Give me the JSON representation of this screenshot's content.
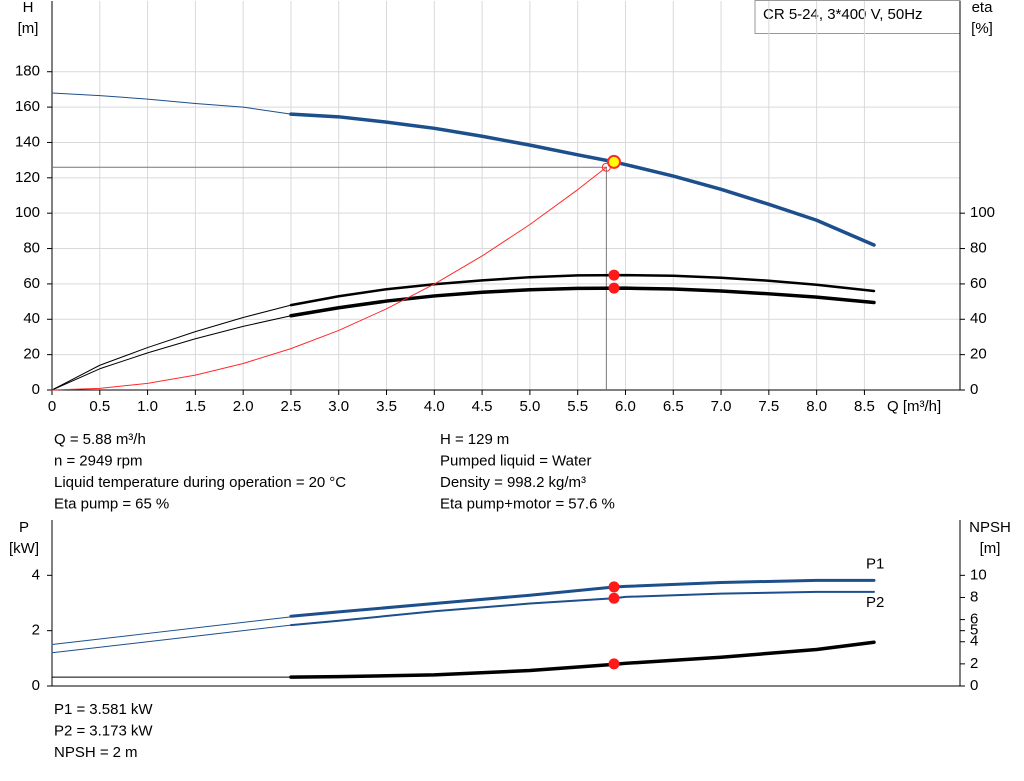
{
  "chart_data": [
    {
      "type": "line",
      "title": "CR 5-24, 3*400 V, 50Hz",
      "x_label": "Q [m³/h]",
      "y_label": "H",
      "y_unit": "[m]",
      "y2_label": "eta",
      "y2_unit": "[%]",
      "xlim": [
        0,
        9.5
      ],
      "xticks": [
        0,
        0.5,
        {
          "value": 1,
          "label": "1.0"
        },
        1.5,
        {
          "value": 2,
          "label": "2.0"
        },
        2.5,
        {
          "value": 3,
          "label": "3.0"
        },
        3.5,
        {
          "value": 4,
          "label": "4.0"
        },
        4.5,
        {
          "value": 5,
          "label": "5.0"
        },
        5.5,
        {
          "value": 6,
          "label": "6.0"
        },
        6.5,
        {
          "value": 7,
          "label": "7.0"
        },
        7.5,
        {
          "value": 8,
          "label": "8.0"
        },
        8.5
      ],
      "ylim": [
        0,
        220
      ],
      "yticks": [
        0,
        20,
        40,
        60,
        80,
        100,
        120,
        140,
        160,
        180
      ],
      "y2lim": [
        0,
        220
      ],
      "y2ticks": [
        0,
        20,
        40,
        60,
        80,
        100
      ],
      "grid": true,
      "duty_point": {
        "x": 5.8,
        "y": 126
      },
      "series": [
        {
          "color": "#1c4f8c",
          "width": 1,
          "x": [
            0,
            0.5,
            1,
            1.5,
            2,
            2.5
          ],
          "values": [
            168,
            166.5,
            164.5,
            162,
            160,
            156
          ]
        },
        {
          "color": "#1c4f8c",
          "width": 3.5,
          "x": [
            2.5,
            3,
            3.5,
            4,
            4.5,
            5,
            5.5,
            5.88,
            6,
            6.5,
            7,
            7.5,
            8,
            8.6
          ],
          "values": [
            156,
            154.5,
            151.5,
            148,
            143.5,
            138.5,
            133,
            129,
            127.5,
            121,
            113.5,
            105,
            96,
            82
          ]
        },
        {
          "color": "#000000",
          "width": 1,
          "axis": "y2",
          "x": [
            0,
            0.5,
            1,
            1.5,
            2,
            2.5
          ],
          "values": [
            0,
            14,
            24,
            33,
            41,
            48
          ]
        },
        {
          "color": "#000000",
          "width": 2.5,
          "axis": "y2",
          "x": [
            2.5,
            3,
            3.5,
            4,
            4.5,
            5,
            5.5,
            6,
            6.5,
            7,
            7.5,
            8,
            8.6
          ],
          "values": [
            48,
            53,
            57,
            59.8,
            62,
            63.8,
            64.8,
            65,
            64.6,
            63.5,
            61.8,
            59.5,
            56
          ]
        },
        {
          "color": "#000000",
          "width": 1,
          "axis": "y2",
          "x": [
            0,
            0.5,
            1,
            1.5,
            2,
            2.5
          ],
          "values": [
            0,
            12,
            21,
            29,
            36,
            42
          ]
        },
        {
          "color": "#000000",
          "width": 3.5,
          "axis": "y2",
          "x": [
            2.5,
            3,
            3.5,
            4,
            4.5,
            5,
            5.5,
            6,
            6.5,
            7,
            7.5,
            8,
            8.6
          ],
          "values": [
            42,
            46.5,
            50.3,
            53.2,
            55.3,
            56.7,
            57.5,
            57.6,
            57.1,
            56,
            54.4,
            52.5,
            49.5
          ]
        },
        {
          "color": "#ff2a2a",
          "width": 1,
          "x": [
            0,
            0.5,
            1,
            1.5,
            2,
            2.5,
            3,
            3.5,
            4,
            4.5,
            5,
            5.5,
            5.8
          ],
          "values": [
            0,
            0.94,
            3.75,
            8.43,
            15,
            23.4,
            33.7,
            45.9,
            59.9,
            75.8,
            93.6,
            113.3,
            126
          ]
        }
      ]
    },
    {
      "type": "line",
      "y_label": "P",
      "y_unit": "[kW]",
      "y2_label": "NPSH",
      "y2_unit": "[m]",
      "xlim": [
        0,
        9.5
      ],
      "ylim": [
        0,
        6
      ],
      "yticks": [
        0,
        2,
        4
      ],
      "y2lim": [
        0,
        15
      ],
      "y2ticks": [
        0,
        2,
        4,
        5,
        6,
        8,
        10
      ],
      "grid": false,
      "series": [
        {
          "color": "#1c4f8c",
          "width": 1,
          "x": [
            0,
            2.5
          ],
          "values": [
            1.5,
            2.5
          ]
        },
        {
          "name": "P1",
          "color": "#1c4f8c",
          "width": 3,
          "x": [
            2.5,
            3,
            4,
            5,
            5.88,
            6,
            7,
            8,
            8.6
          ],
          "values": [
            2.52,
            2.68,
            2.98,
            3.28,
            3.58,
            3.6,
            3.74,
            3.82,
            3.82
          ]
        },
        {
          "color": "#1c4f8c",
          "width": 1,
          "x": [
            0,
            2.5
          ],
          "values": [
            1.2,
            2.2
          ]
        },
        {
          "name": "P2",
          "color": "#1c4f8c",
          "width": 2,
          "x": [
            2.5,
            3,
            4,
            5,
            5.88,
            6,
            7,
            8,
            8.6
          ],
          "values": [
            2.2,
            2.36,
            2.7,
            2.98,
            3.17,
            3.22,
            3.34,
            3.4,
            3.4
          ]
        },
        {
          "color": "#000000",
          "width": 1,
          "axis": "y2",
          "x": [
            0,
            2.5
          ],
          "values": [
            0.8,
            0.8
          ]
        },
        {
          "color": "#000000",
          "width": 3.5,
          "axis": "y2",
          "x": [
            2.5,
            3,
            4,
            5,
            5.88,
            6,
            7,
            8,
            8.6
          ],
          "values": [
            0.8,
            0.85,
            1,
            1.4,
            1.95,
            2.05,
            2.6,
            3.3,
            3.95
          ]
        }
      ]
    }
  ],
  "readouts": {
    "left": [
      {
        "label": "Q =",
        "value": 5.88,
        "unit": "m³/h"
      },
      {
        "label": "n =",
        "value": 2949,
        "unit": "rpm"
      },
      {
        "label": "Liquid temperature during operation =",
        "value": 20,
        "unit": "°C"
      },
      {
        "label": "Eta pump =",
        "value": 65,
        "unit": "%"
      }
    ],
    "right": [
      {
        "label": "H =",
        "value": 129,
        "unit": "m"
      },
      {
        "label": "Pumped liquid =",
        "value": "Water"
      },
      {
        "label": "Density =",
        "value": 998.2,
        "unit": "kg/m³"
      },
      {
        "label": "Eta pump+motor =",
        "value": 57.6,
        "unit": "%"
      }
    ],
    "bottom": [
      {
        "label": "P1 =",
        "value": 3.581,
        "unit": "kW"
      },
      {
        "label": "P2 =",
        "value": 3.173,
        "unit": "kW"
      },
      {
        "label": "NPSH =",
        "value": 2,
        "unit": "m"
      }
    ]
  }
}
